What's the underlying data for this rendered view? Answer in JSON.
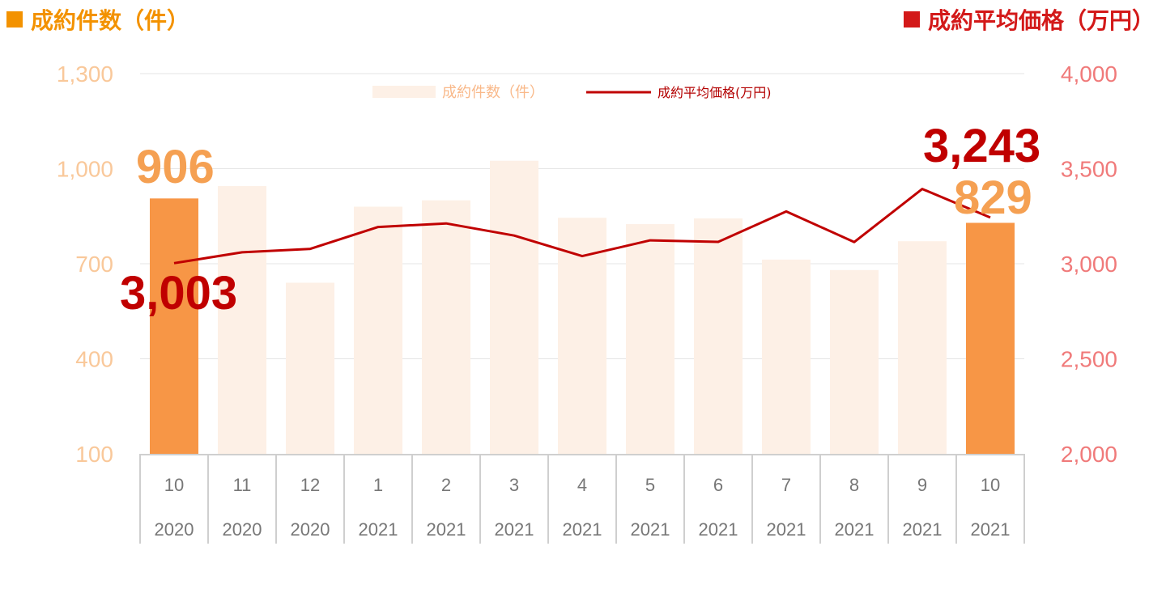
{
  "header": {
    "left_title": "成約件数（件）",
    "right_title": "成約平均価格（万円）"
  },
  "colors": {
    "bar_light": "#fdf0e6",
    "bar_highlight": "#f79646",
    "line": "#c00000",
    "left_header": "#f39200",
    "right_header": "#d31919"
  },
  "chart_data": {
    "type": "bar",
    "categories": [
      {
        "month": "10",
        "year": "2020"
      },
      {
        "month": "11",
        "year": "2020"
      },
      {
        "month": "12",
        "year": "2020"
      },
      {
        "month": "1",
        "year": "2021"
      },
      {
        "month": "2",
        "year": "2021"
      },
      {
        "month": "3",
        "year": "2021"
      },
      {
        "month": "4",
        "year": "2021"
      },
      {
        "month": "5",
        "year": "2021"
      },
      {
        "month": "6",
        "year": "2021"
      },
      {
        "month": "7",
        "year": "2021"
      },
      {
        "month": "8",
        "year": "2021"
      },
      {
        "month": "9",
        "year": "2021"
      },
      {
        "month": "10",
        "year": "2021"
      }
    ],
    "series": [
      {
        "name": "成約件数（件）",
        "type": "bar",
        "axis": "left",
        "values": [
          906,
          945,
          640,
          880,
          900,
          1025,
          845,
          825,
          843,
          713,
          680,
          771,
          829
        ],
        "highlight": [
          0,
          12
        ]
      },
      {
        "name": "成約平均価格(万円)",
        "type": "line",
        "axis": "right",
        "values": [
          3003,
          3060,
          3078,
          3193,
          3212,
          3148,
          3040,
          3123,
          3115,
          3275,
          3114,
          3393,
          3243
        ]
      }
    ],
    "y_left": {
      "min": 100,
      "max": 1300,
      "ticks": [
        "1,300",
        "1,000",
        "700",
        "400",
        "100"
      ],
      "tick_values": [
        1300,
        1000,
        700,
        400,
        100
      ]
    },
    "y_right": {
      "min": 2000,
      "max": 4000,
      "ticks": [
        "4,000",
        "3,500",
        "3,000",
        "2,500",
        "2,000"
      ],
      "tick_values": [
        4000,
        3500,
        3000,
        2500,
        2000
      ]
    },
    "annotations": {
      "first_count": "906",
      "last_count": "829",
      "first_price": "3,003",
      "last_price": "3,243"
    },
    "legend_position": "top-center",
    "grid": true
  }
}
